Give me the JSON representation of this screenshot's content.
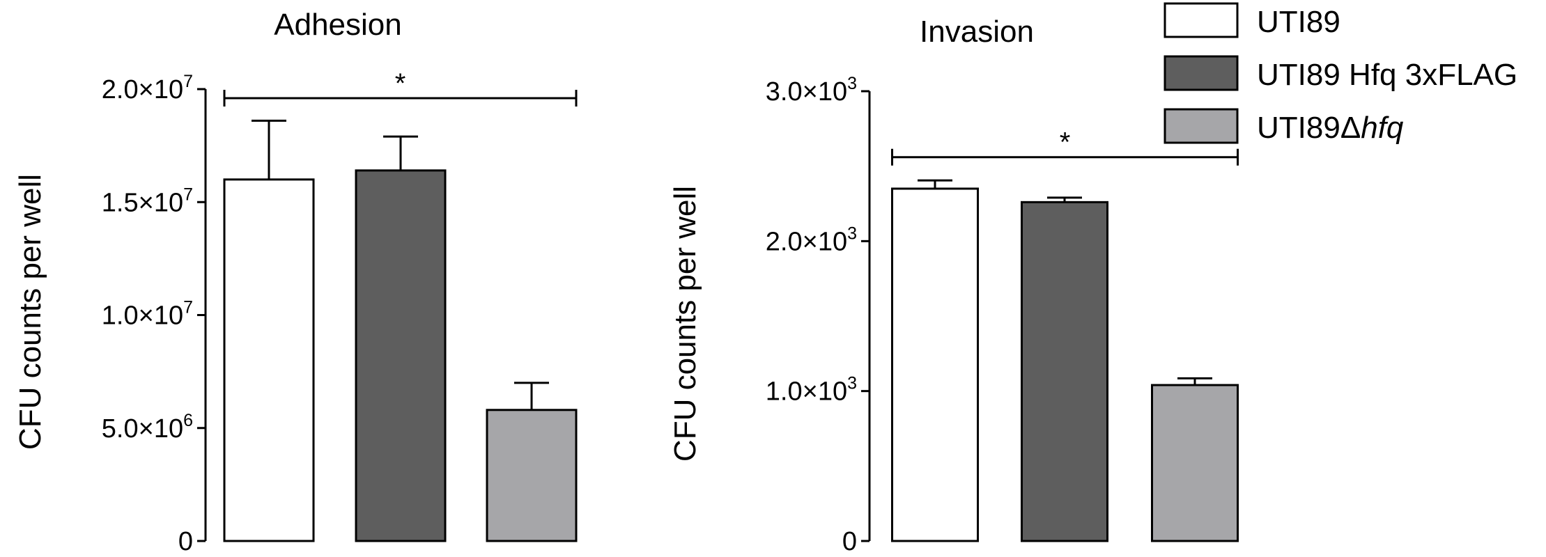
{
  "chart_data": [
    {
      "type": "bar",
      "title": "Adhesion",
      "ylabel": "CFU counts per well",
      "categories": [
        "UTI89",
        "UTI89 Hfq 3xFLAG",
        "UTI89Δhfq"
      ],
      "values": [
        16000000,
        16400000,
        5800000
      ],
      "errors": [
        2600000,
        1500000,
        1200000
      ],
      "ylim": [
        0,
        20000000
      ],
      "yticks": [
        {
          "value": 0,
          "mantissa": "0",
          "exp": ""
        },
        {
          "value": 5000000,
          "mantissa": "5.0×10",
          "exp": "6"
        },
        {
          "value": 10000000,
          "mantissa": "1.0×10",
          "exp": "7"
        },
        {
          "value": 15000000,
          "mantissa": "1.5×10",
          "exp": "7"
        },
        {
          "value": 20000000,
          "mantissa": "2.0×10",
          "exp": "7"
        }
      ],
      "significance": {
        "from": 0,
        "to": 2,
        "label": "*",
        "value": 19600000
      }
    },
    {
      "type": "bar",
      "title": "Invasion",
      "ylabel": "CFU counts per well",
      "categories": [
        "UTI89",
        "UTI89 Hfq 3xFLAG",
        "UTI89Δhfq"
      ],
      "values": [
        2350,
        2260,
        1040
      ],
      "errors": [
        55,
        30,
        45
      ],
      "ylim": [
        0,
        3000
      ],
      "yticks": [
        {
          "value": 0,
          "mantissa": "0",
          "exp": ""
        },
        {
          "value": 1000,
          "mantissa": "1.0×10",
          "exp": "3"
        },
        {
          "value": 2000,
          "mantissa": "2.0×10",
          "exp": "3"
        },
        {
          "value": 3000,
          "mantissa": "3.0×10",
          "exp": "3"
        }
      ],
      "significance": {
        "from": 0,
        "to": 2,
        "label": "*",
        "value": 2560
      }
    }
  ],
  "legend": {
    "placement": "top-right",
    "items": [
      {
        "label": "UTI89",
        "italic_suffix": "",
        "color": "#ffffff"
      },
      {
        "label": "UTI89 Hfq 3xFLAG",
        "italic_suffix": "",
        "color": "#5e5e5e"
      },
      {
        "label": "UTI89Δ",
        "italic_suffix": "hfq",
        "color": "#a6a6a9"
      }
    ]
  },
  "colors": {
    "bars": [
      "#ffffff",
      "#5e5e5e",
      "#a6a6a9"
    ],
    "axis": "#000000"
  }
}
